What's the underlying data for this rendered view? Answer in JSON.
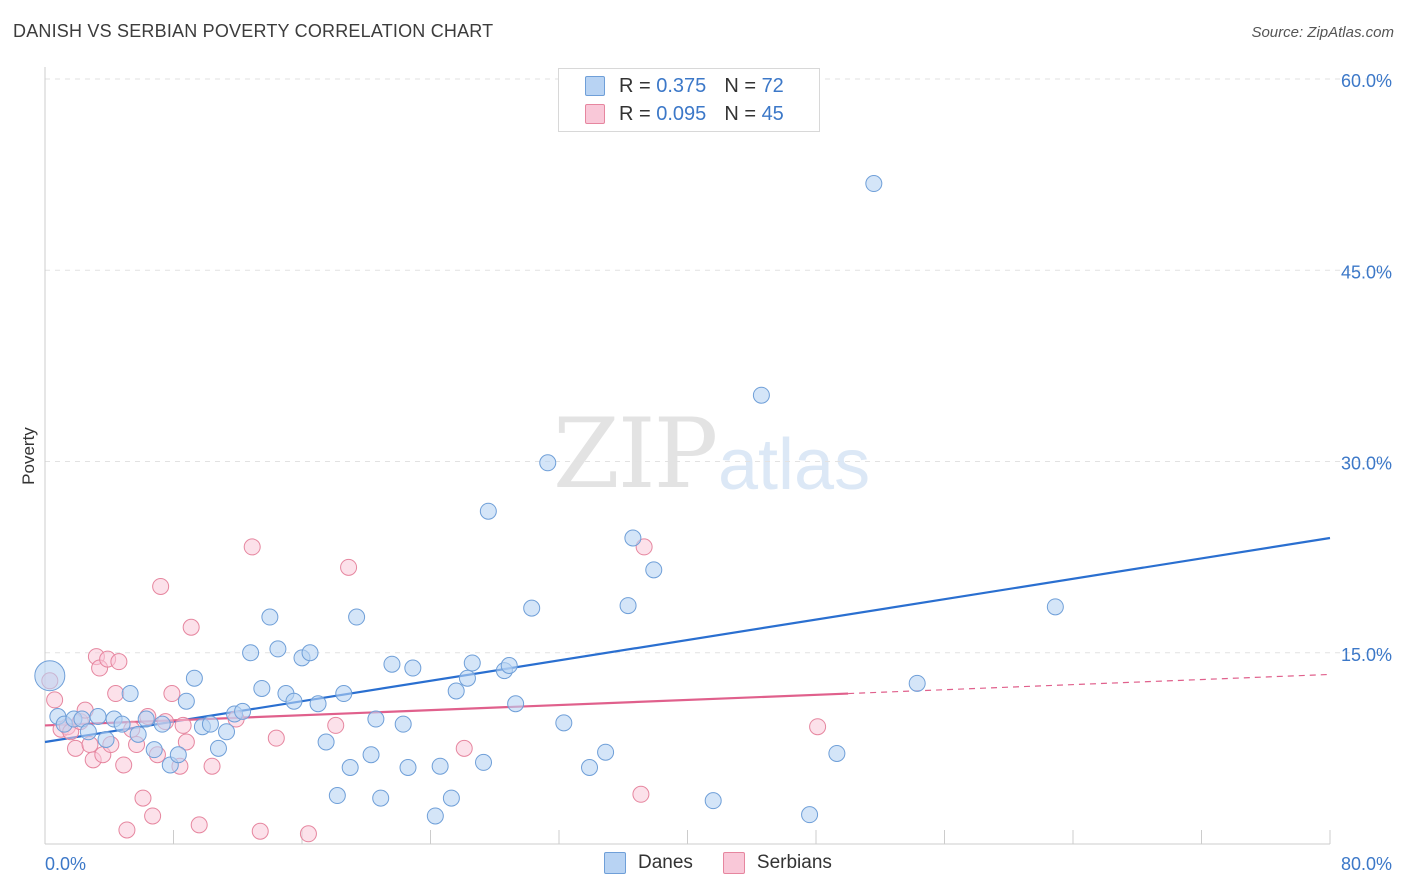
{
  "title": "DANISH VS SERBIAN POVERTY CORRELATION CHART",
  "source": "Source: ZipAtlas.com",
  "watermark": {
    "zip": "ZIP",
    "atlas": "atlas"
  },
  "legend": {
    "rows": [
      {
        "r_label": "R =",
        "r_value": "0.375",
        "n_label": "N =",
        "n_value": "72",
        "color": "#a9c8f0"
      },
      {
        "r_label": "R =",
        "r_value": "0.095",
        "n_label": "N =",
        "n_value": "45",
        "color": "#f7bcd0"
      }
    ]
  },
  "bottom_legend": {
    "danes": "Danes",
    "serbians": "Serbians"
  },
  "colors": {
    "danes_fill": "#b8d3f3",
    "danes_stroke": "#6f9fd8",
    "danes_line": "#2a6fd0",
    "serbians_fill": "#f9c8d8",
    "serbians_stroke": "#e6869f",
    "serbians_line": "#e0608c"
  },
  "chart_data": {
    "type": "scatter",
    "title": "DANISH VS SERBIAN POVERTY CORRELATION CHART",
    "xlabel": "",
    "ylabel": "Poverty",
    "xlim": [
      0,
      80
    ],
    "ylim": [
      0,
      60
    ],
    "x_tick_labels": [
      "0.0%",
      "80.0%"
    ],
    "y_tick_labels": [
      "15.0%",
      "30.0%",
      "45.0%",
      "60.0%"
    ],
    "y_ticks": [
      15,
      30,
      45,
      60
    ],
    "series": [
      {
        "name": "Danes",
        "R": 0.375,
        "N": 72,
        "trend": {
          "x": [
            0,
            80
          ],
          "y": [
            8.0,
            24.0
          ]
        },
        "points": [
          [
            0.3,
            13.2
          ],
          [
            0.8,
            10.0
          ],
          [
            1.2,
            9.4
          ],
          [
            1.8,
            9.8
          ],
          [
            2.3,
            9.8
          ],
          [
            2.7,
            8.8
          ],
          [
            3.3,
            10.0
          ],
          [
            3.8,
            8.2
          ],
          [
            4.3,
            9.8
          ],
          [
            4.8,
            9.4
          ],
          [
            5.3,
            11.8
          ],
          [
            5.8,
            8.6
          ],
          [
            6.3,
            9.8
          ],
          [
            6.8,
            7.4
          ],
          [
            7.3,
            9.4
          ],
          [
            7.8,
            6.2
          ],
          [
            8.3,
            7.0
          ],
          [
            8.8,
            11.2
          ],
          [
            9.3,
            13.0
          ],
          [
            9.8,
            9.2
          ],
          [
            10.3,
            9.4
          ],
          [
            10.8,
            7.5
          ],
          [
            11.3,
            8.8
          ],
          [
            11.8,
            10.2
          ],
          [
            12.3,
            10.4
          ],
          [
            12.8,
            15.0
          ],
          [
            13.5,
            12.2
          ],
          [
            14.0,
            17.8
          ],
          [
            14.5,
            15.3
          ],
          [
            15.0,
            11.8
          ],
          [
            15.5,
            11.2
          ],
          [
            16.0,
            14.6
          ],
          [
            16.5,
            15.0
          ],
          [
            17.0,
            11.0
          ],
          [
            17.5,
            8.0
          ],
          [
            18.2,
            3.8
          ],
          [
            18.6,
            11.8
          ],
          [
            19.0,
            6.0
          ],
          [
            19.4,
            17.8
          ],
          [
            20.3,
            7.0
          ],
          [
            20.6,
            9.8
          ],
          [
            20.9,
            3.6
          ],
          [
            21.6,
            14.1
          ],
          [
            22.3,
            9.4
          ],
          [
            22.6,
            6.0
          ],
          [
            22.9,
            13.8
          ],
          [
            24.3,
            2.2
          ],
          [
            24.6,
            6.1
          ],
          [
            25.3,
            3.6
          ],
          [
            25.6,
            12.0
          ],
          [
            26.3,
            13.0
          ],
          [
            26.6,
            14.2
          ],
          [
            27.3,
            6.4
          ],
          [
            27.6,
            26.1
          ],
          [
            28.6,
            13.6
          ],
          [
            28.9,
            14.0
          ],
          [
            29.3,
            11.0
          ],
          [
            30.3,
            18.5
          ],
          [
            31.3,
            29.9
          ],
          [
            32.3,
            9.5
          ],
          [
            33.9,
            6.0
          ],
          [
            34.9,
            7.2
          ],
          [
            36.3,
            18.7
          ],
          [
            36.6,
            24.0
          ],
          [
            37.9,
            21.5
          ],
          [
            41.6,
            3.4
          ],
          [
            44.6,
            35.2
          ],
          [
            47.6,
            2.3
          ],
          [
            49.3,
            7.1
          ],
          [
            51.6,
            51.8
          ],
          [
            54.3,
            12.6
          ],
          [
            62.9,
            18.6
          ]
        ]
      },
      {
        "name": "Serbians",
        "R": 0.095,
        "N": 45,
        "trend": {
          "x": [
            0,
            50
          ],
          "y": [
            9.3,
            11.8
          ]
        },
        "trend_extension": {
          "x": [
            50,
            80
          ],
          "y": [
            11.8,
            13.3
          ]
        },
        "points": [
          [
            0.3,
            12.8
          ],
          [
            0.6,
            11.3
          ],
          [
            1.0,
            9.0
          ],
          [
            1.4,
            9.2
          ],
          [
            1.6,
            8.8
          ],
          [
            1.9,
            7.5
          ],
          [
            2.2,
            9.6
          ],
          [
            2.5,
            10.5
          ],
          [
            2.8,
            7.8
          ],
          [
            3.0,
            6.6
          ],
          [
            3.2,
            14.7
          ],
          [
            3.4,
            13.8
          ],
          [
            3.6,
            7.0
          ],
          [
            3.9,
            14.5
          ],
          [
            4.1,
            7.8
          ],
          [
            4.4,
            11.8
          ],
          [
            4.6,
            14.3
          ],
          [
            4.9,
            6.2
          ],
          [
            5.1,
            1.1
          ],
          [
            5.4,
            9.0
          ],
          [
            5.7,
            7.8
          ],
          [
            6.1,
            3.6
          ],
          [
            6.4,
            10.0
          ],
          [
            6.7,
            2.2
          ],
          [
            7.0,
            7.0
          ],
          [
            7.2,
            20.2
          ],
          [
            7.5,
            9.6
          ],
          [
            7.9,
            11.8
          ],
          [
            8.4,
            6.1
          ],
          [
            8.6,
            9.3
          ],
          [
            8.8,
            8.0
          ],
          [
            9.1,
            17.0
          ],
          [
            9.6,
            1.5
          ],
          [
            10.4,
            6.1
          ],
          [
            11.9,
            9.8
          ],
          [
            12.9,
            23.3
          ],
          [
            13.4,
            1.0
          ],
          [
            14.4,
            8.3
          ],
          [
            16.4,
            0.8
          ],
          [
            18.9,
            21.7
          ],
          [
            26.1,
            7.5
          ],
          [
            37.1,
            3.9
          ],
          [
            37.3,
            23.3
          ],
          [
            48.1,
            9.2
          ],
          [
            18.1,
            9.3
          ]
        ]
      }
    ]
  }
}
